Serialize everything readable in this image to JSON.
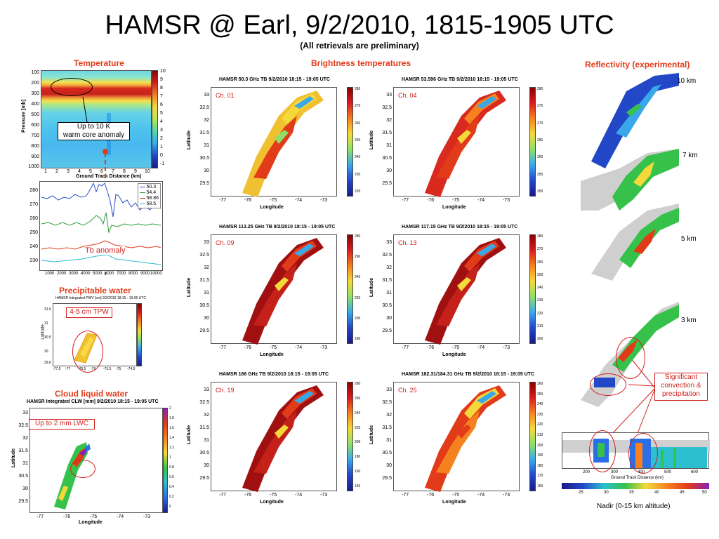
{
  "title": "HAMSR @ Earl, 9/2/2010, 1815-1905 UTC",
  "subtitle": "(All retrievals are preliminary)",
  "sections": {
    "temperature": "Temperature",
    "brightness": "Brightness temperatures",
    "reflectivity": "Reflectivity (experimental)",
    "pwv": "Precipitable water",
    "clw": "Cloud liquid water"
  },
  "temperature_panel": {
    "ylabel": "Pressure [mb]",
    "xlabel": "Ground Track Distance (km)",
    "yticks": [
      "100",
      "200",
      "300",
      "400",
      "500",
      "600",
      "700",
      "800",
      "900",
      "1000"
    ],
    "xticks": [
      "1",
      "2",
      "3",
      "4",
      "5",
      "6",
      "7",
      "8",
      "9",
      "10"
    ],
    "cbar_ticks": [
      "10",
      "9",
      "8",
      "7",
      "6",
      "5",
      "4",
      "3",
      "2",
      "1",
      "0",
      "-1"
    ],
    "annotation_line1": "Up to 10 K",
    "annotation_line2": "warm core anomaly"
  },
  "tb_anomaly": {
    "label": "Tb anomaly",
    "legend": [
      "50.3",
      "54.4",
      "58.86",
      "58.5"
    ],
    "legend_colors": [
      "#2b4fd0",
      "#2e9a3a",
      "#e23b1a",
      "#2bbfcf"
    ],
    "yticks": [
      "280",
      "270",
      "260",
      "250",
      "240",
      "230"
    ],
    "xticks": [
      "1000",
      "2000",
      "3000",
      "4000",
      "5000",
      "6000",
      "7000",
      "8000",
      "9000",
      "10000"
    ]
  },
  "pwv_panel": {
    "title": "HAMSR Integrated PWV [cm] 9/2/2010 18:15 - 19:05 UTC",
    "annotation": "4-5 cm TPW",
    "ylabel": "Latitude",
    "yticks": [
      "31.6",
      "31",
      "30.5",
      "30",
      "29.6"
    ],
    "xticks": [
      "-77.5",
      "-77",
      "-76.5",
      "-76",
      "-75.5",
      "-75",
      "-74.5"
    ]
  },
  "clw_panel": {
    "title": "HAMSR Integrated CLW [mm] 9/2/2010 18:15 - 19:05 UTC",
    "annotation": "Up to 2 mm LWC",
    "ylabel": "Latitude",
    "xlabel": "Longitude",
    "yticks": [
      "33",
      "32.5",
      "32",
      "31.5",
      "31",
      "30.5",
      "30",
      "29.5"
    ],
    "xticks": [
      "-77",
      "-76",
      "-75",
      "-74",
      "-73"
    ],
    "cbar_ticks": [
      "2",
      "1.8",
      "1.6",
      "1.4",
      "1.2",
      "1",
      "0.8",
      "0.6",
      "0.4",
      "0.2",
      "0"
    ]
  },
  "tb_panels": [
    {
      "title": "HAMSR 50.3 GHz TB 9/2/2010 18:15 - 19:05 UTC",
      "ch": "Ch. 01",
      "cbar": [
        "280",
        "270",
        "260",
        "250",
        "240",
        "230",
        "220"
      ],
      "palette": "warm"
    },
    {
      "title": "HAMSR 53.596 GHz TB 9/2/2010 18:15 - 19:05 UTC",
      "ch": "Ch. 04",
      "cbar": [
        "280",
        "275",
        "270",
        "265",
        "260",
        "255",
        "250"
      ],
      "palette": "hot"
    },
    {
      "title": "HAMSR 113.25 GHz TB 9/2/2010 18:15 - 19:05 UTC",
      "ch": "Ch. 09",
      "cbar": [
        "280",
        "260",
        "240",
        "220",
        "200",
        "180"
      ],
      "palette": "deep"
    },
    {
      "title": "HAMSR 117.15 GHz TB 9/2/2010 18:15 - 19:05 UTC",
      "ch": "Ch. 13",
      "cbar": [
        "280",
        "270",
        "260",
        "250",
        "240",
        "230",
        "220",
        "210",
        "200"
      ],
      "palette": "deep"
    },
    {
      "title": "HAMSR 166 GHz TB 9/2/2010 18:15 - 19:05 UTC",
      "ch": "Ch. 19",
      "cbar": [
        "280",
        "260",
        "240",
        "220",
        "200",
        "180",
        "160",
        "140"
      ],
      "palette": "deep"
    },
    {
      "title": "HAMSR 182.31/184.31 GHz TB 9/2/2010 18:15 - 19:05 UTC",
      "ch": "Ch. 25",
      "cbar": [
        "260",
        "250",
        "240",
        "230",
        "220",
        "210",
        "200",
        "190",
        "180",
        "170",
        "160"
      ],
      "palette": "mixed"
    }
  ],
  "map_axes": {
    "ylabel": "Latitude",
    "xlabel": "Longitude",
    "yticks": [
      "33",
      "32.5",
      "32",
      "31.5",
      "31",
      "30.5",
      "30",
      "29.5"
    ],
    "xticks": [
      "-77",
      "-76",
      "-75",
      "-74",
      "-73"
    ]
  },
  "reflectivity": {
    "levels": [
      "10 km",
      "7 km",
      "5 km",
      "3 km"
    ],
    "annotation_line1": "Significant",
    "annotation_line2": "convection &",
    "annotation_line3": "precipitation",
    "xlabel": "Ground Track Distance (km)",
    "xticks": [
      "200",
      "300",
      "400",
      "500",
      "600"
    ],
    "cbar_ticks": [
      "25",
      "30",
      "35",
      "40",
      "45",
      "50"
    ],
    "nadir_caption": "Nadir (0-15 km altitude)"
  }
}
